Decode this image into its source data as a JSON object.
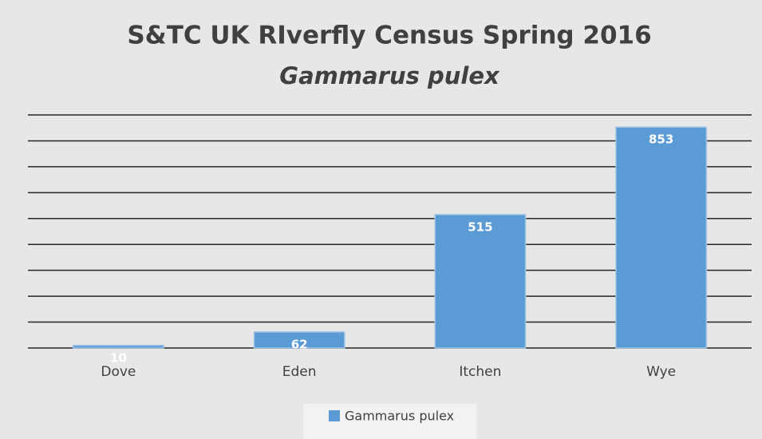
{
  "chart_data": {
    "type": "bar",
    "title": "S&TC UK RIverfly Census Spring 2016",
    "subtitle": "Gammarus pulex",
    "categories": [
      "Dove",
      "Eden",
      "Itchen",
      "Wye"
    ],
    "series": [
      {
        "name": "Gammarus pulex",
        "color": "#5b9bd5",
        "values": [
          10,
          62,
          515,
          853
        ]
      }
    ],
    "ylim": [
      0,
      900
    ],
    "yticks": [
      0,
      100,
      200,
      300,
      400,
      500,
      600,
      700,
      800,
      900
    ],
    "grid": true,
    "legend": "bottom"
  }
}
